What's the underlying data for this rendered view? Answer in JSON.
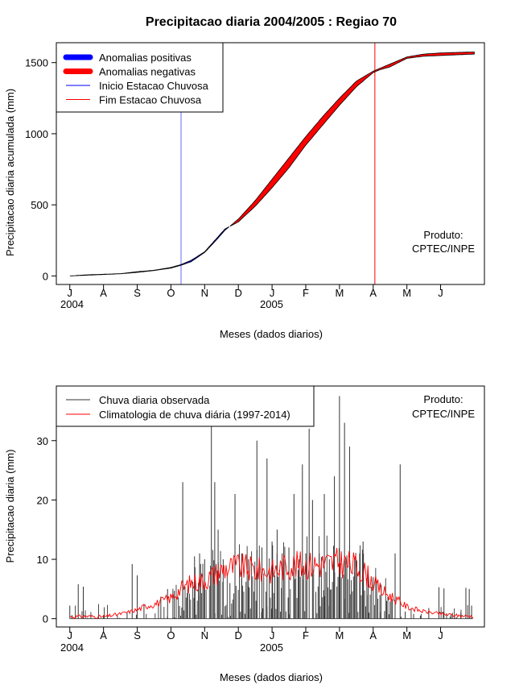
{
  "chart_data": [
    {
      "type": "area",
      "title": "Precipitacao diaria 2004/2005 : Regiao 70",
      "xlabel": "Meses (dados diarios)",
      "ylabel": "Precipitacao diaria acumulada (mm)",
      "month_ticks": [
        "J",
        "A",
        "S",
        "O",
        "N",
        "D",
        "J",
        "F",
        "M",
        "A",
        "M",
        "J"
      ],
      "year_labels": [
        "2004",
        "2005"
      ],
      "ylim": [
        0,
        1600
      ],
      "yticks": [
        0,
        500,
        1000,
        1500
      ],
      "xlim_months": [
        -0.4,
        12.3
      ],
      "legend": [
        {
          "label": "Anomalias positivas",
          "color": "#0000ff",
          "style": "thick"
        },
        {
          "label": "Anomalias negativas",
          "color": "#ff0000",
          "style": "thick"
        },
        {
          "label": "Inicio Estacao Chuvosa",
          "color": "#0000ff",
          "style": "thin"
        },
        {
          "label": "Fim Estacao Chuvosa",
          "color": "#ff0000",
          "style": "thin"
        }
      ],
      "vlines": [
        {
          "name": "inicio-estacao-line",
          "month": 3.3,
          "color": "#6666ff"
        },
        {
          "name": "fim-estacao-line",
          "month": 9.05,
          "color": "#ff0000"
        }
      ],
      "observed_cumulative": {
        "months": [
          0,
          0.5,
          1,
          1.5,
          2,
          2.5,
          3,
          3.3,
          3.6,
          4,
          4.3,
          4.6,
          5,
          5.5,
          6,
          6.5,
          7,
          7.5,
          8,
          8.5,
          9,
          9.2,
          9.5,
          10,
          10.5,
          11,
          11.5,
          12
        ],
        "values": [
          0,
          8,
          12,
          16,
          30,
          40,
          60,
          80,
          110,
          170,
          250,
          330,
          380,
          490,
          620,
          760,
          920,
          1060,
          1200,
          1330,
          1430,
          1450,
          1470,
          1530,
          1545,
          1550,
          1555,
          1560
        ]
      },
      "climatology_cumulative": {
        "months": [
          0,
          0.5,
          1,
          1.5,
          2,
          2.5,
          3,
          3.3,
          3.6,
          4,
          4.3,
          4.6,
          5,
          5.5,
          6,
          6.5,
          7,
          7.5,
          8,
          8.5,
          9,
          9.2,
          9.5,
          10,
          10.5,
          11,
          11.5,
          12
        ],
        "values": [
          0,
          5,
          10,
          15,
          25,
          38,
          55,
          75,
          100,
          165,
          240,
          320,
          400,
          530,
          680,
          830,
          980,
          1120,
          1250,
          1370,
          1440,
          1460,
          1490,
          1540,
          1560,
          1568,
          1572,
          1575
        ]
      },
      "annotation": [
        "Produto:",
        "CPTEC/INPE"
      ]
    },
    {
      "type": "line",
      "title": "",
      "xlabel": "Meses (dados diarios)",
      "ylabel": "Precipitacao diaria (mm)",
      "month_ticks": [
        "J",
        "A",
        "S",
        "O",
        "N",
        "D",
        "J",
        "F",
        "M",
        "A",
        "M",
        "J"
      ],
      "year_labels": [
        "2004",
        "2005"
      ],
      "ylim": [
        0,
        38
      ],
      "yticks": [
        0,
        10,
        20,
        30
      ],
      "xlim_months": [
        -0.4,
        12.3
      ],
      "legend": [
        {
          "label": "Chuva diaria observada",
          "color": "#333333"
        },
        {
          "label": "Climatologia de chuva diária (1997-2014)",
          "color": "#ff0000"
        }
      ],
      "series": [
        {
          "name": "Chuva diaria observada",
          "color": "#333333",
          "peaks": [
            {
              "month": 0.0,
              "value": 2.2
            },
            {
              "month": 0.25,
              "value": 5.8
            },
            {
              "month": 0.4,
              "value": 5.4
            },
            {
              "month": 1.0,
              "value": 0.6
            },
            {
              "month": 1.7,
              "value": 1.0
            },
            {
              "month": 1.85,
              "value": 9.2
            },
            {
              "month": 2.0,
              "value": 7.3
            },
            {
              "month": 2.2,
              "value": 2.5
            },
            {
              "month": 2.7,
              "value": 3.7
            },
            {
              "month": 2.9,
              "value": 5.0
            },
            {
              "month": 3.1,
              "value": 4.7
            },
            {
              "month": 3.35,
              "value": 23.0
            },
            {
              "month": 3.5,
              "value": 5.0
            },
            {
              "month": 3.7,
              "value": 10.5
            },
            {
              "month": 3.85,
              "value": 11.0
            },
            {
              "month": 4.0,
              "value": 10.0
            },
            {
              "month": 4.2,
              "value": 34.0
            },
            {
              "month": 4.3,
              "value": 23.0
            },
            {
              "month": 4.4,
              "value": 15.0
            },
            {
              "month": 4.55,
              "value": 10.0
            },
            {
              "month": 4.75,
              "value": 6.0
            },
            {
              "month": 4.9,
              "value": 21.0
            },
            {
              "month": 5.1,
              "value": 11.0
            },
            {
              "month": 5.3,
              "value": 10.0
            },
            {
              "month": 5.55,
              "value": 30.0
            },
            {
              "month": 5.7,
              "value": 12.0
            },
            {
              "month": 5.85,
              "value": 27.0
            },
            {
              "month": 6.0,
              "value": 13.0
            },
            {
              "month": 6.15,
              "value": 15.0
            },
            {
              "month": 6.3,
              "value": 11.0
            },
            {
              "month": 6.5,
              "value": 12.0
            },
            {
              "month": 6.65,
              "value": 21.0
            },
            {
              "month": 6.8,
              "value": 10.0
            },
            {
              "month": 6.9,
              "value": 26.0
            },
            {
              "month": 7.0,
              "value": 11.0
            },
            {
              "month": 7.1,
              "value": 32.0
            },
            {
              "month": 7.2,
              "value": 20.0
            },
            {
              "month": 7.4,
              "value": 11.0
            },
            {
              "month": 7.55,
              "value": 21.0
            },
            {
              "month": 7.7,
              "value": 10.0
            },
            {
              "month": 7.85,
              "value": 24.0
            },
            {
              "month": 8.0,
              "value": 37.5
            },
            {
              "month": 8.15,
              "value": 33.0
            },
            {
              "month": 8.3,
              "value": 29.0
            },
            {
              "month": 8.45,
              "value": 10.0
            },
            {
              "month": 8.6,
              "value": 11.0
            },
            {
              "month": 8.7,
              "value": 13.0
            },
            {
              "month": 8.85,
              "value": 8.0
            },
            {
              "month": 9.0,
              "value": 7.0
            },
            {
              "month": 9.2,
              "value": 4.0
            },
            {
              "month": 9.4,
              "value": 3.0
            },
            {
              "month": 9.65,
              "value": 11.0
            },
            {
              "month": 9.8,
              "value": 26.0
            },
            {
              "month": 9.95,
              "value": 1.2
            },
            {
              "month": 10.2,
              "value": 0.8
            },
            {
              "month": 10.4,
              "value": 0.5
            },
            {
              "month": 10.65,
              "value": 1.8
            },
            {
              "month": 10.95,
              "value": 5.3
            },
            {
              "month": 11.1,
              "value": 5.1
            },
            {
              "month": 11.35,
              "value": 1.0
            },
            {
              "month": 11.6,
              "value": 1.0
            },
            {
              "month": 11.75,
              "value": 5.2
            },
            {
              "month": 11.85,
              "value": 5.0
            },
            {
              "month": 11.92,
              "value": 2.2
            }
          ]
        },
        {
          "name": "Climatologia de chuva diária (1997-2014)",
          "color": "#ff0000",
          "months": [
            0,
            0.5,
            1,
            1.5,
            1.8,
            2,
            2.3,
            2.6,
            3,
            3.3,
            3.6,
            4,
            4.3,
            4.6,
            5,
            5.5,
            6,
            6.5,
            7,
            7.5,
            8,
            8.5,
            8.8,
            9,
            9.3,
            9.6,
            10,
            10.5,
            11,
            11.5,
            12
          ],
          "values": [
            0.3,
            0.4,
            0.3,
            0.8,
            1.2,
            1.5,
            2.2,
            2.6,
            3.5,
            5.0,
            6.0,
            6.5,
            7.5,
            8.5,
            8.8,
            8.2,
            8.0,
            9.0,
            9.0,
            9.2,
            9.5,
            8.8,
            7.5,
            6.0,
            4.5,
            3.5,
            2.0,
            1.2,
            0.8,
            0.5,
            0.4
          ]
        }
      ],
      "annotation": [
        "Produto:",
        "CPTEC/INPE"
      ]
    }
  ]
}
